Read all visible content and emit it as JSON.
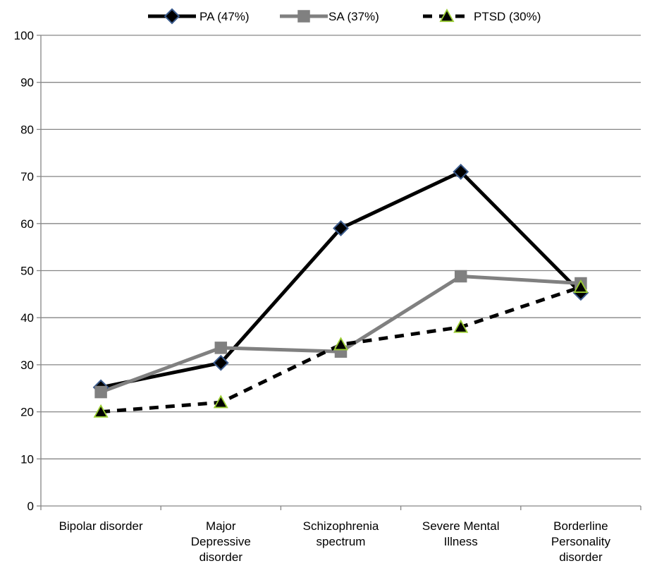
{
  "chart_data": {
    "type": "line",
    "title": "",
    "xlabel": "",
    "ylabel": "",
    "ylim": [
      0,
      100
    ],
    "yticks": [
      0,
      10,
      20,
      30,
      40,
      50,
      60,
      70,
      80,
      90,
      100
    ],
    "grid": true,
    "legend_position": "top",
    "categories": [
      [
        "Bipolar disorder"
      ],
      [
        "Major",
        "Depressive",
        "disorder"
      ],
      [
        "Schizophrenia",
        "spectrum"
      ],
      [
        "Severe Mental",
        "Illness"
      ],
      [
        "Borderline",
        "Personality",
        "disorder"
      ]
    ],
    "series": [
      {
        "name": "PA (47%)",
        "values": [
          25.2,
          30.4,
          59.0,
          71.0,
          45.3
        ],
        "color": "#000000",
        "line": "solid",
        "marker": "diamond",
        "marker_fill": "#000000",
        "marker_edge": "#3a5a8c"
      },
      {
        "name": "SA (37%)",
        "values": [
          24.2,
          33.6,
          32.8,
          48.8,
          47.3
        ],
        "color": "#808080",
        "line": "solid",
        "marker": "square",
        "marker_fill": "#808080",
        "marker_edge": "#808080"
      },
      {
        "name": "PTSD (30%)",
        "values": [
          20.0,
          22.0,
          34.3,
          38.0,
          46.5
        ],
        "color": "#000000",
        "line": "dashed",
        "marker": "triangle",
        "marker_fill": "#000000",
        "marker_edge": "#9acd32"
      }
    ]
  }
}
